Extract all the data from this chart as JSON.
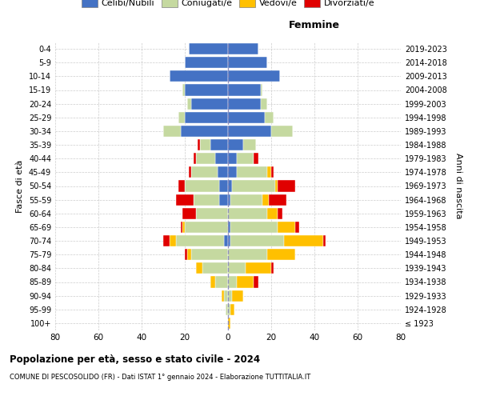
{
  "age_groups": [
    "100+",
    "95-99",
    "90-94",
    "85-89",
    "80-84",
    "75-79",
    "70-74",
    "65-69",
    "60-64",
    "55-59",
    "50-54",
    "45-49",
    "40-44",
    "35-39",
    "30-34",
    "25-29",
    "20-24",
    "15-19",
    "10-14",
    "5-9",
    "0-4"
  ],
  "birth_years": [
    "≤ 1923",
    "1924-1928",
    "1929-1933",
    "1934-1938",
    "1939-1943",
    "1944-1948",
    "1949-1953",
    "1954-1958",
    "1959-1963",
    "1964-1968",
    "1969-1973",
    "1974-1978",
    "1979-1983",
    "1984-1988",
    "1989-1993",
    "1994-1998",
    "1999-2003",
    "2004-2008",
    "2009-2013",
    "2014-2018",
    "2019-2023"
  ],
  "male_celibi": [
    0,
    0,
    0,
    0,
    0,
    0,
    2,
    0,
    0,
    4,
    4,
    5,
    6,
    8,
    22,
    20,
    17,
    20,
    27,
    20,
    18
  ],
  "male_coniugati": [
    0,
    1,
    2,
    6,
    12,
    17,
    22,
    20,
    15,
    12,
    16,
    12,
    9,
    5,
    8,
    3,
    2,
    1,
    0,
    0,
    0
  ],
  "male_vedovi": [
    0,
    0,
    1,
    2,
    3,
    2,
    3,
    1,
    0,
    0,
    0,
    0,
    0,
    0,
    0,
    0,
    0,
    0,
    0,
    0,
    0
  ],
  "male_divorziati": [
    0,
    0,
    0,
    0,
    0,
    1,
    3,
    1,
    6,
    8,
    3,
    1,
    1,
    1,
    0,
    0,
    0,
    0,
    0,
    0,
    0
  ],
  "female_celibi": [
    0,
    0,
    0,
    0,
    0,
    0,
    1,
    1,
    0,
    1,
    2,
    4,
    4,
    7,
    20,
    17,
    15,
    15,
    24,
    18,
    14
  ],
  "female_coniugati": [
    0,
    1,
    2,
    4,
    8,
    18,
    25,
    22,
    18,
    15,
    20,
    14,
    8,
    6,
    10,
    4,
    3,
    1,
    0,
    0,
    0
  ],
  "female_vedovi": [
    1,
    2,
    5,
    8,
    12,
    13,
    18,
    8,
    5,
    3,
    1,
    2,
    0,
    0,
    0,
    0,
    0,
    0,
    0,
    0,
    0
  ],
  "female_divorziati": [
    0,
    0,
    0,
    2,
    1,
    0,
    1,
    2,
    2,
    8,
    8,
    1,
    2,
    0,
    0,
    0,
    0,
    0,
    0,
    0,
    0
  ],
  "colors": {
    "celibi": "#4472c4",
    "coniugati": "#c5d9a0",
    "vedovi": "#ffc000",
    "divorziati": "#e00000"
  },
  "xlim": 80,
  "title": "Popolazione per età, sesso e stato civile - 2024",
  "subtitle": "COMUNE DI PESCOSOLIDO (FR) - Dati ISTAT 1° gennaio 2024 - Elaborazione TUTTITALIA.IT",
  "ylabel": "Fasce di età",
  "ylabel_right": "Anni di nascita",
  "label_femmine": "Femmine",
  "legend_celibi": "Celibi/Nubili",
  "legend_coniugati": "Coniugati/e",
  "legend_vedovi": "Vedovi/e",
  "legend_divorziati": "Divorziati/e"
}
